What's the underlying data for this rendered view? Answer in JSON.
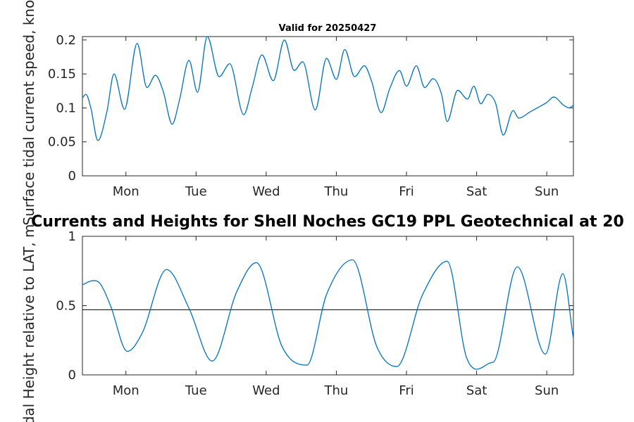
{
  "chart_data": [
    {
      "type": "line",
      "title": "Valid for 20250427",
      "ylabel": "Surface tidal current speed, knots",
      "xlabel": "",
      "x_unit": "days",
      "xlim": [
        0,
        7
      ],
      "ylim": [
        0,
        0.205
      ],
      "yticks": [
        0,
        0.05,
        0.1,
        0.15,
        0.2
      ],
      "ytick_labels": [
        "0",
        "0.05",
        "0.1",
        "0.15",
        "0.2"
      ],
      "xticks": [
        0.62,
        1.62,
        2.62,
        3.62,
        4.62,
        5.62,
        6.62
      ],
      "xtick_labels": [
        "Mon",
        "Tue",
        "Wed",
        "Thu",
        "Fri",
        "Sat",
        "Sun"
      ],
      "grid": false,
      "line_color": "#0072BD",
      "series": [
        {
          "x": [
            0,
            0.05,
            0.12,
            0.22,
            0.35,
            0.45,
            0.6,
            0.78,
            0.92,
            1.04,
            1.15,
            1.28,
            1.38,
            1.52,
            1.64,
            1.78,
            1.95,
            2.1,
            2.3,
            2.42,
            2.56,
            2.72,
            2.88,
            3.02,
            3.14,
            3.32,
            3.48,
            3.62,
            3.74,
            3.88,
            4.02,
            4.12,
            4.26,
            4.38,
            4.52,
            4.62,
            4.76,
            4.88,
            5.0,
            5.12,
            5.2,
            5.35,
            5.49,
            5.58,
            5.68,
            5.78,
            5.89,
            6.0,
            6.14,
            6.22,
            6.38,
            6.52,
            6.62,
            6.72,
            6.86,
            6.94,
            7.0
          ],
          "y": [
            0.115,
            0.12,
            0.1,
            0.052,
            0.095,
            0.15,
            0.098,
            0.195,
            0.13,
            0.148,
            0.125,
            0.076,
            0.11,
            0.17,
            0.123,
            0.205,
            0.146,
            0.165,
            0.09,
            0.13,
            0.178,
            0.14,
            0.2,
            0.155,
            0.168,
            0.097,
            0.173,
            0.142,
            0.186,
            0.146,
            0.162,
            0.14,
            0.093,
            0.128,
            0.155,
            0.132,
            0.162,
            0.13,
            0.143,
            0.12,
            0.08,
            0.126,
            0.113,
            0.132,
            0.106,
            0.12,
            0.107,
            0.06,
            0.096,
            0.085,
            0.094,
            0.102,
            0.108,
            0.116,
            0.104,
            0.1,
            0.104
          ]
        }
      ]
    },
    {
      "type": "line",
      "title": "Currents and Heights for Shell Noches   GC19 PPL  Geotechnical at 20",
      "ylabel": "Tidal Height relative to LAT, m",
      "xlabel": "",
      "x_unit": "days",
      "xlim": [
        0,
        7
      ],
      "ylim": [
        0,
        1
      ],
      "yticks": [
        0,
        0.5,
        1
      ],
      "ytick_labels": [
        "0",
        "0.5",
        "1"
      ],
      "xticks": [
        0.62,
        1.62,
        2.62,
        3.62,
        4.62,
        5.62,
        6.62
      ],
      "xtick_labels": [
        "Mon",
        "Tue",
        "Wed",
        "Thu",
        "Fri",
        "Sat",
        "Sun"
      ],
      "grid": false,
      "line_color": "#0072BD",
      "reference_line": {
        "y": 0.47,
        "color": "#000000"
      },
      "series": [
        {
          "x": [
            0,
            0.15,
            0.25,
            0.4,
            0.64,
            0.85,
            1.2,
            1.52,
            1.85,
            2.2,
            2.48,
            2.85,
            3.2,
            3.48,
            3.85,
            4.2,
            4.48,
            4.85,
            5.2,
            5.48,
            5.85,
            6.2,
            6.6,
            6.85,
            7.0
          ],
          "y": [
            0.65,
            0.68,
            0.66,
            0.5,
            0.17,
            0.3,
            0.76,
            0.48,
            0.1,
            0.6,
            0.81,
            0.2,
            0.07,
            0.58,
            0.83,
            0.2,
            0.06,
            0.58,
            0.82,
            0.12,
            0.09,
            0.78,
            0.15,
            0.73,
            0.26
          ]
        }
      ]
    }
  ]
}
